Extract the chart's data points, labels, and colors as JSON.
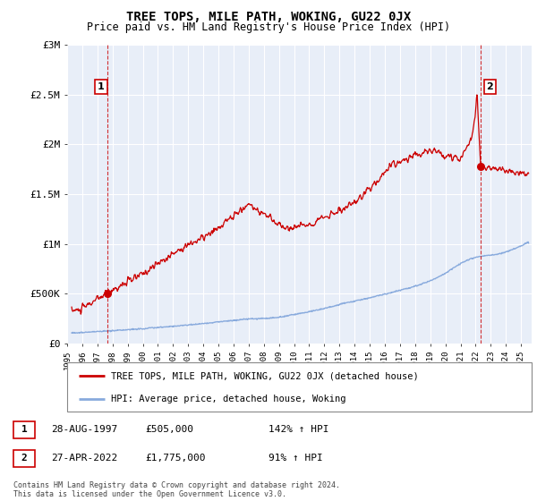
{
  "title": "TREE TOPS, MILE PATH, WOKING, GU22 0JX",
  "subtitle": "Price paid vs. HM Land Registry's House Price Index (HPI)",
  "ylabel_ticks": [
    "£0",
    "£500K",
    "£1M",
    "£1.5M",
    "£2M",
    "£2.5M",
    "£3M"
  ],
  "ytick_values": [
    0,
    500000,
    1000000,
    1500000,
    2000000,
    2500000,
    3000000
  ],
  "ylim": [
    0,
    3000000
  ],
  "xlim_start": 1995.3,
  "xlim_end": 2025.7,
  "property_color": "#cc0000",
  "hpi_color": "#88aadd",
  "point1_x": 1997.65,
  "point1_y": 505000,
  "point2_x": 2022.33,
  "point2_y": 1775000,
  "legend_property": "TREE TOPS, MILE PATH, WOKING, GU22 0JX (detached house)",
  "legend_hpi": "HPI: Average price, detached house, Woking",
  "table_row1": [
    "1",
    "28-AUG-1997",
    "£505,000",
    "142% ↑ HPI"
  ],
  "table_row2": [
    "2",
    "27-APR-2022",
    "£1,775,000",
    "91% ↑ HPI"
  ],
  "footnote": "Contains HM Land Registry data © Crown copyright and database right 2024.\nThis data is licensed under the Open Government Licence v3.0.",
  "xtick_years": [
    1995,
    1996,
    1997,
    1998,
    1999,
    2000,
    2001,
    2002,
    2003,
    2004,
    2005,
    2006,
    2007,
    2008,
    2009,
    2010,
    2011,
    2012,
    2013,
    2014,
    2015,
    2016,
    2017,
    2018,
    2019,
    2020,
    2021,
    2022,
    2023,
    2024,
    2025
  ],
  "chart_bg": "#e8eef8",
  "grid_color": "#ffffff"
}
